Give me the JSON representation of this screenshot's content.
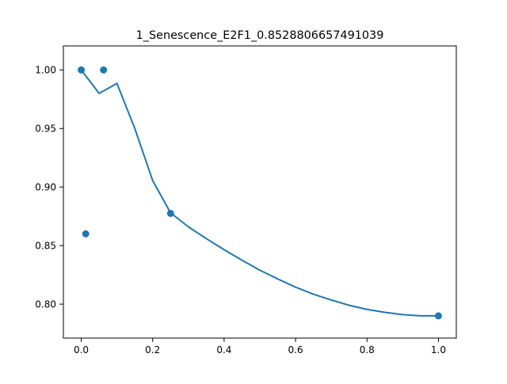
{
  "chart_data": {
    "type": "line",
    "title": "1_Senescence_E2F1_0.8528806657491039",
    "xlabel": "",
    "ylabel": "",
    "xlim": [
      -0.05,
      1.05
    ],
    "ylim": [
      0.771,
      1.0205
    ],
    "xticks": [
      0.0,
      0.2,
      0.4,
      0.6,
      0.8,
      1.0
    ],
    "xtick_labels": [
      "0.0",
      "0.2",
      "0.4",
      "0.6",
      "0.8",
      "1.0"
    ],
    "yticks": [
      0.8,
      0.85,
      0.9,
      0.95,
      1.0
    ],
    "ytick_labels": [
      "0.80",
      "0.85",
      "0.90",
      "0.95",
      "1.00"
    ],
    "grid": false,
    "series": [
      {
        "kind": "line",
        "color": "#1f77b4",
        "x": [
          0.0,
          0.05,
          0.1,
          0.15,
          0.2,
          0.25,
          0.3,
          0.35,
          0.4,
          0.45,
          0.5,
          0.55,
          0.6,
          0.65,
          0.7,
          0.75,
          0.8,
          0.85,
          0.9,
          0.95,
          1.0
        ],
        "y": [
          1.0,
          0.98,
          0.9885,
          0.95,
          0.9055,
          0.878,
          0.866,
          0.856,
          0.8465,
          0.8375,
          0.829,
          0.8215,
          0.8145,
          0.8085,
          0.8035,
          0.799,
          0.7955,
          0.793,
          0.791,
          0.79,
          0.79
        ]
      },
      {
        "kind": "scatter",
        "color": "#1f77b4",
        "x": [
          0.0,
          0.0125,
          0.0625,
          0.25,
          1.0
        ],
        "y": [
          1.0,
          0.86,
          1.0,
          0.8775,
          0.79
        ]
      }
    ]
  }
}
